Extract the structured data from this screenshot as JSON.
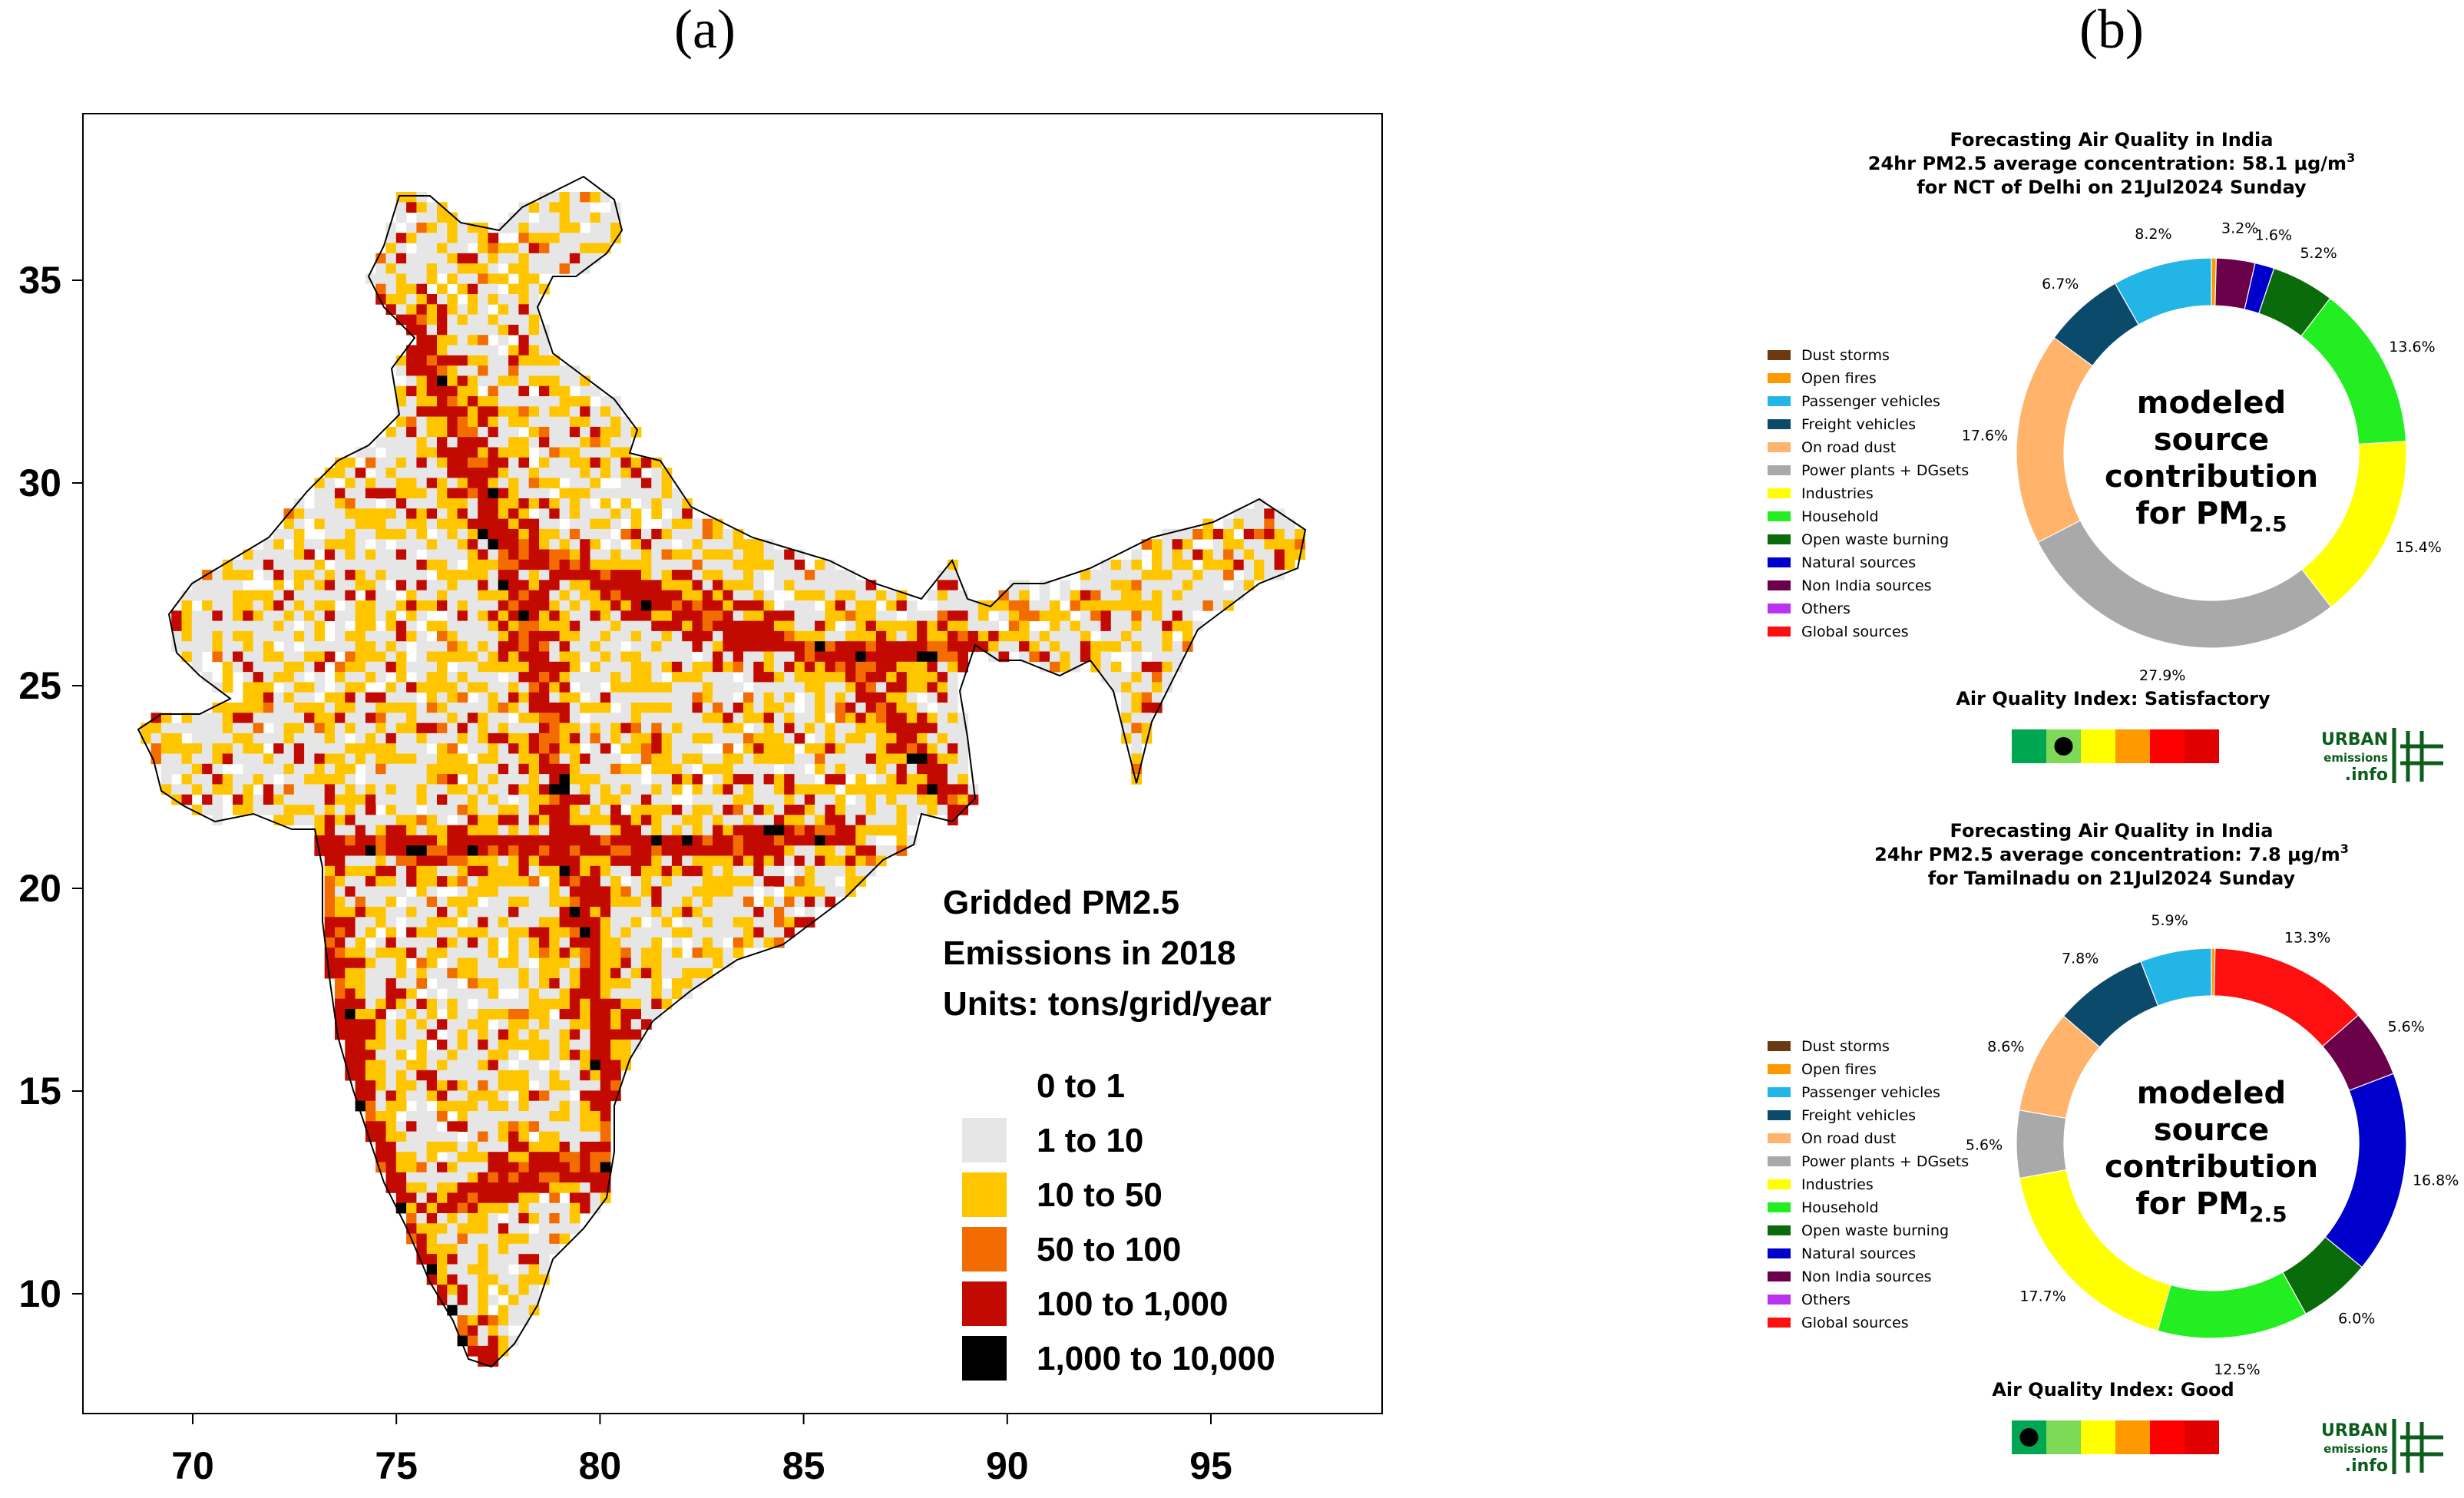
{
  "panel_a": {
    "label": "(a)",
    "chart_data": {
      "type": "heatmap",
      "title_lines": [
        "Gridded PM2.5",
        "Emissions in 2018",
        "Units: tons/grid/year"
      ],
      "x_ticks": [
        "70",
        "75",
        "80",
        "85",
        "90",
        "95"
      ],
      "y_ticks": [
        "10",
        "15",
        "20",
        "25",
        "30",
        "35"
      ],
      "xlim": [
        67,
        99
      ],
      "ylim": [
        7,
        38
      ],
      "legend": [
        {
          "label": "0  to  1",
          "color": "#ffffff"
        },
        {
          "label": "1  to  10",
          "color": "#e6e6e6"
        },
        {
          "label": "10  to  50",
          "color": "#ffc600"
        },
        {
          "label": "50  to  100",
          "color": "#f26c00"
        },
        {
          "label": "100  to  1,000",
          "color": "#c20a00"
        },
        {
          "label": "1,000  to  10,000",
          "color": "#000000"
        }
      ]
    }
  },
  "panel_b": {
    "label": "(b)",
    "categories": [
      "Dust storms",
      "Open fires",
      "Passenger vehicles",
      "Freight vehicles",
      "On road dust",
      "Power plants + DGsets",
      "Industries",
      "Household",
      "Open waste burning",
      "Natural sources",
      "Non India sources",
      "Others",
      "Global sources"
    ],
    "colors": [
      "#6b3a10",
      "#ff9900",
      "#22b5e6",
      "#0b4a6b",
      "#ffb36b",
      "#a9a9a9",
      "#ffff00",
      "#22ee22",
      "#0a6b0a",
      "#0000cc",
      "#6b004b",
      "#bb33ee",
      "#ff1010"
    ],
    "center_lines": [
      "modeled",
      "source",
      "contribution",
      "for PM"
    ],
    "center_subscript": "2.5",
    "aqi_colors": [
      "#00a651",
      "#7ed957",
      "#ffff00",
      "#ff9900",
      "#ff0000",
      "#e10000"
    ],
    "logo": {
      "line1": "URBAN",
      "line2": "emissions",
      "line3": ".info"
    },
    "charts": [
      {
        "title1": "Forecasting Air Quality in India",
        "title2": "24hr PM2.5 average concentration: 58.1 μg/m",
        "title2_sup": "3",
        "title3": "for NCT of Delhi on 21Jul2024 Sunday",
        "aqi_label": "Air Quality Index: Satisfactory",
        "aqi_marker_index": 1,
        "chart_data": {
          "type": "pie",
          "slices": [
            {
              "category": "Open fires",
              "value": 0.4,
              "label": ""
            },
            {
              "category": "Non India sources",
              "value": 3.2,
              "label": "3.2%"
            },
            {
              "category": "Natural sources",
              "value": 1.6,
              "label": "1.6%"
            },
            {
              "category": "Open waste burning",
              "value": 5.2,
              "label": "5.2%"
            },
            {
              "category": "Household",
              "value": 13.6,
              "label": "13.6%"
            },
            {
              "category": "Industries",
              "value": 15.4,
              "label": "15.4%"
            },
            {
              "category": "Power plants + DGsets",
              "value": 27.9,
              "label": "27.9%"
            },
            {
              "category": "On road dust",
              "value": 17.6,
              "label": "17.6%"
            },
            {
              "category": "Freight vehicles",
              "value": 6.7,
              "label": "6.7%"
            },
            {
              "category": "Passenger vehicles",
              "value": 8.2,
              "label": "8.2%"
            }
          ]
        }
      },
      {
        "title1": "Forecasting Air Quality in India",
        "title2": "24hr PM2.5 average concentration: 7.8 μg/m",
        "title2_sup": "3",
        "title3": "for Tamilnadu on 21Jul2024 Sunday",
        "aqi_label": "Air Quality Index: Good",
        "aqi_marker_index": 0,
        "chart_data": {
          "type": "pie",
          "slices": [
            {
              "category": "Open fires",
              "value": 0.3,
              "label": ""
            },
            {
              "category": "Global sources",
              "value": 13.3,
              "label": "13.3%"
            },
            {
              "category": "Non India sources",
              "value": 5.6,
              "label": "5.6%"
            },
            {
              "category": "Natural sources",
              "value": 16.8,
              "label": "16.8%"
            },
            {
              "category": "Open waste burning",
              "value": 6.0,
              "label": "6.0%"
            },
            {
              "category": "Household",
              "value": 12.5,
              "label": "12.5%"
            },
            {
              "category": "Industries",
              "value": 17.7,
              "label": "17.7%"
            },
            {
              "category": "Power plants + DGsets",
              "value": 5.6,
              "label": "5.6%"
            },
            {
              "category": "On road dust",
              "value": 8.6,
              "label": "8.6%"
            },
            {
              "category": "Freight vehicles",
              "value": 7.8,
              "label": "7.8%"
            },
            {
              "category": "Passenger vehicles",
              "value": 5.9,
              "label": "5.9%"
            }
          ]
        }
      }
    ]
  }
}
